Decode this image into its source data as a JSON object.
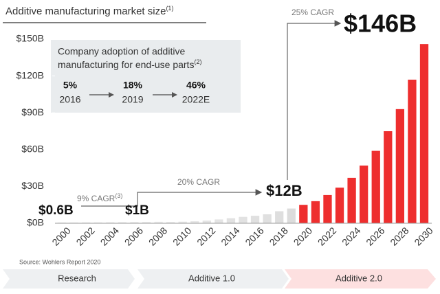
{
  "chart_data": {
    "type": "bar",
    "title": "Additive manufacturing market size",
    "title_note": "(1)",
    "categories": [
      "2000",
      null,
      "2002",
      null,
      "2004",
      null,
      "2006",
      null,
      "2008",
      null,
      "2010",
      null,
      "2012",
      null,
      "2014",
      null,
      "2016",
      null,
      "2018",
      null,
      "2020",
      null,
      "2022",
      null,
      "2024",
      null,
      "2026",
      null,
      "2028",
      null,
      "2030"
    ],
    "values": [
      0.6,
      0.6,
      0.7,
      0.7,
      0.8,
      0.9,
      1,
      1.1,
      1.2,
      1.1,
      1.3,
      1.7,
      2.2,
      3.1,
      4.1,
      5.2,
      6.1,
      7.3,
      9.8,
      12,
      15,
      18,
      23,
      29,
      37,
      47,
      59,
      75,
      93,
      117,
      146
    ],
    "colors": [
      "#ececec",
      "#ececec",
      "#ececec",
      "#ececec",
      "#ececec",
      "#ececec",
      "#ececec",
      "#ececec",
      "#ececec",
      "#ececec",
      "#e8e8e8",
      "#e8e8e8",
      "#e4e4e4",
      "#e4e4e4",
      "#e2e2e2",
      "#e2e2e2",
      "#e0e0e0",
      "#e0e0e0",
      "#dedede",
      "#dcdcdc",
      "#ee2e2e",
      "#ee2e2e",
      "#ee2e2e",
      "#ee2e2e",
      "#ee2e2e",
      "#ee2e2e",
      "#ee2e2e",
      "#ee2e2e",
      "#ee2e2e",
      "#ee2e2e",
      "#ee2e2e"
    ],
    "ylim": [
      0,
      150
    ],
    "yticks": [
      {
        "value": 0,
        "label": "$0B"
      },
      {
        "value": 30,
        "label": "$30B"
      },
      {
        "value": 60,
        "label": "$60B"
      },
      {
        "value": 90,
        "label": "$90B"
      },
      {
        "value": 120,
        "label": "$120B"
      },
      {
        "value": 150,
        "label": "$150B"
      }
    ],
    "callouts": {
      "start": "$0.6B",
      "y2006": "$1B",
      "y2019": "$12B",
      "y2030": "$146B"
    },
    "cagr": {
      "first": "9% CAGR",
      "first_note": "(3)",
      "second": "20% CAGR",
      "third": "25% CAGR"
    },
    "inset": {
      "title": "Company adoption of additive",
      "title2": "manufacturing for end-use parts",
      "title_note": "(2)",
      "items": [
        {
          "share": "5%",
          "year": "2016"
        },
        {
          "share": "18%",
          "year": "2019"
        },
        {
          "share": "46%",
          "year": "2022E"
        }
      ]
    },
    "source": "Source: Wohlers Report 2020",
    "phases": [
      "Research",
      "Additive 1.0",
      "Additive 2.0"
    ]
  }
}
